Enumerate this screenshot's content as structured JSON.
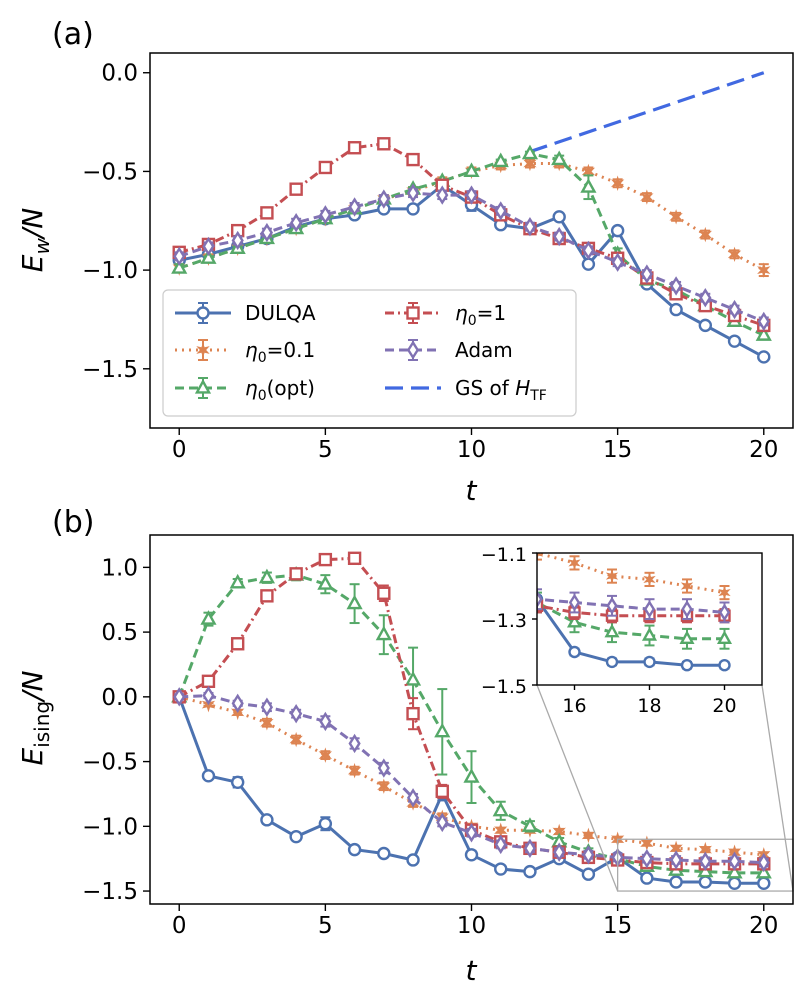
{
  "colors": {
    "DULQA": "#4c72b0",
    "eta01": "#dd8452",
    "etaopt": "#55a868",
    "eta1": "#c44e52",
    "Adam": "#8172b3",
    "GS": "#4169e1"
  },
  "legend_entries": [
    "DULQA",
    "η0=0.1",
    "η0(opt)",
    "η0=1",
    "Adam",
    "GS of HTF"
  ],
  "chart_data": [
    {
      "panel": "(a)",
      "type": "line",
      "xlabel": "t",
      "ylabel": "Ew/N",
      "xlim": [
        -1,
        21
      ],
      "ylim": [
        -1.8,
        0.1
      ],
      "xticks": [
        "0",
        "5",
        "10",
        "15",
        "20"
      ],
      "yticks": [
        "0.0",
        "−0.5",
        "−1.0",
        "−1.5"
      ],
      "legend_position": "lower-left",
      "series": [
        {
          "name": "DULQA",
          "x": [
            0,
            1,
            2,
            3,
            4,
            5,
            6,
            7,
            8,
            9,
            10,
            11,
            12,
            13,
            14,
            15,
            16,
            17,
            18,
            19,
            20
          ],
          "values": [
            -0.95,
            -0.92,
            -0.88,
            -0.84,
            -0.78,
            -0.74,
            -0.72,
            -0.69,
            -0.69,
            -0.57,
            -0.67,
            -0.77,
            -0.79,
            -0.73,
            -0.97,
            -0.8,
            -1.07,
            -1.2,
            -1.28,
            -1.36,
            -1.44
          ],
          "err": [
            0.01,
            0.01,
            0.01,
            0.01,
            0.01,
            0.01,
            0.01,
            0.01,
            0.01,
            0.01,
            0.03,
            0.01,
            0.01,
            0.01,
            0.01,
            0.01,
            0.01,
            0.01,
            0.01,
            0.01,
            0.01
          ]
        },
        {
          "name": "η0=0.1",
          "x": [
            0,
            1,
            2,
            3,
            4,
            5,
            6,
            7,
            8,
            9,
            10,
            11,
            12,
            13,
            14,
            15,
            16,
            17,
            18,
            19,
            20
          ],
          "values": [
            -0.99,
            -0.94,
            -0.89,
            -0.84,
            -0.79,
            -0.74,
            -0.69,
            -0.64,
            -0.6,
            -0.55,
            -0.5,
            -0.47,
            -0.46,
            -0.46,
            -0.5,
            -0.56,
            -0.63,
            -0.73,
            -0.82,
            -0.92,
            -1.0
          ],
          "err": [
            0.02,
            0.02,
            0.02,
            0.02,
            0.02,
            0.02,
            0.02,
            0.02,
            0.02,
            0.02,
            0.02,
            0.02,
            0.02,
            0.02,
            0.02,
            0.02,
            0.02,
            0.02,
            0.02,
            0.02,
            0.03
          ]
        },
        {
          "name": "η0(opt)",
          "x": [
            0,
            1,
            2,
            3,
            4,
            5,
            6,
            7,
            8,
            9,
            10,
            11,
            12,
            13,
            14,
            15,
            16,
            17,
            18,
            19,
            20
          ],
          "values": [
            -0.99,
            -0.94,
            -0.89,
            -0.84,
            -0.79,
            -0.74,
            -0.69,
            -0.64,
            -0.59,
            -0.55,
            -0.5,
            -0.45,
            -0.41,
            -0.44,
            -0.58,
            -0.92,
            -1.05,
            -1.1,
            -1.18,
            -1.26,
            -1.33
          ],
          "err": [
            0.02,
            0.01,
            0.01,
            0.01,
            0.01,
            0.01,
            0.01,
            0.01,
            0.01,
            0.01,
            0.01,
            0.01,
            0.01,
            0.02,
            0.06,
            0.03,
            0.02,
            0.02,
            0.02,
            0.02,
            0.02
          ]
        },
        {
          "name": "η0=1",
          "x": [
            0,
            1,
            2,
            3,
            4,
            5,
            6,
            7,
            8,
            9,
            10,
            11,
            12,
            13,
            14,
            15,
            16,
            17,
            18,
            19,
            20
          ],
          "values": [
            -0.91,
            -0.87,
            -0.8,
            -0.71,
            -0.59,
            -0.48,
            -0.38,
            -0.36,
            -0.44,
            -0.57,
            -0.63,
            -0.72,
            -0.79,
            -0.84,
            -0.89,
            -0.94,
            -1.04,
            -1.12,
            -1.18,
            -1.23,
            -1.28
          ],
          "err": [
            0.01,
            0.01,
            0.01,
            0.01,
            0.01,
            0.01,
            0.01,
            0.01,
            0.01,
            0.02,
            0.01,
            0.01,
            0.01,
            0.01,
            0.01,
            0.01,
            0.01,
            0.01,
            0.01,
            0.01,
            0.01
          ]
        },
        {
          "name": "Adam",
          "x": [
            0,
            1,
            2,
            3,
            4,
            5,
            6,
            7,
            8,
            9,
            10,
            11,
            12,
            13,
            14,
            15,
            16,
            17,
            18,
            19,
            20
          ],
          "values": [
            -0.93,
            -0.88,
            -0.85,
            -0.81,
            -0.76,
            -0.72,
            -0.68,
            -0.64,
            -0.61,
            -0.62,
            -0.62,
            -0.7,
            -0.78,
            -0.83,
            -0.9,
            -0.96,
            -1.02,
            -1.08,
            -1.14,
            -1.2,
            -1.26
          ],
          "err": [
            0.02,
            0.02,
            0.02,
            0.02,
            0.02,
            0.02,
            0.02,
            0.02,
            0.02,
            0.02,
            0.02,
            0.02,
            0.02,
            0.02,
            0.02,
            0.02,
            0.02,
            0.02,
            0.02,
            0.02,
            0.02
          ]
        },
        {
          "name": "GS of HTF",
          "x": [
            12,
            20
          ],
          "values": [
            -0.4,
            0.0
          ]
        }
      ]
    },
    {
      "panel": "(b)",
      "type": "line",
      "xlabel": "t",
      "ylabel": "Eising/N",
      "xlim": [
        -1,
        21
      ],
      "ylim": [
        -1.6,
        1.25
      ],
      "xticks": [
        "0",
        "5",
        "10",
        "15",
        "20"
      ],
      "yticks": [
        "1.0",
        "0.5",
        "0.0",
        "−0.5",
        "−1.0",
        "−1.5"
      ],
      "series": [
        {
          "name": "DULQA",
          "x": [
            0,
            1,
            2,
            3,
            4,
            5,
            6,
            7,
            8,
            9,
            10,
            11,
            12,
            13,
            14,
            15,
            16,
            17,
            18,
            19,
            20
          ],
          "values": [
            0.0,
            -0.61,
            -0.66,
            -0.95,
            -1.08,
            -0.98,
            -1.18,
            -1.21,
            -1.26,
            -0.75,
            -1.22,
            -1.33,
            -1.35,
            -1.25,
            -1.37,
            -1.24,
            -1.4,
            -1.43,
            -1.43,
            -1.44,
            -1.44
          ],
          "err": [
            0.01,
            0.02,
            0.04,
            0.03,
            0.01,
            0.05,
            0.01,
            0.01,
            0.01,
            0.05,
            0.03,
            0.01,
            0.01,
            0.01,
            0.01,
            0.01,
            0.01,
            0.01,
            0.01,
            0.01,
            0.01
          ]
        },
        {
          "name": "η0=0.1",
          "x": [
            0,
            1,
            2,
            3,
            4,
            5,
            6,
            7,
            8,
            9,
            10,
            11,
            12,
            13,
            14,
            15,
            16,
            17,
            18,
            19,
            20
          ],
          "values": [
            0.0,
            -0.06,
            -0.12,
            -0.2,
            -0.33,
            -0.45,
            -0.57,
            -0.69,
            -0.82,
            -0.93,
            -1.0,
            -1.03,
            -1.03,
            -1.04,
            -1.07,
            -1.1,
            -1.13,
            -1.17,
            -1.18,
            -1.2,
            -1.22
          ],
          "err": [
            0.01,
            0.01,
            0.02,
            0.03,
            0.03,
            0.03,
            0.03,
            0.03,
            0.03,
            0.03,
            0.02,
            0.02,
            0.02,
            0.02,
            0.02,
            0.02,
            0.02,
            0.02,
            0.02,
            0.02,
            0.02
          ]
        },
        {
          "name": "η0(opt)",
          "x": [
            0,
            1,
            2,
            3,
            4,
            5,
            6,
            7,
            8,
            9,
            10,
            11,
            12,
            13,
            14,
            15,
            16,
            17,
            18,
            19,
            20
          ],
          "values": [
            0.0,
            0.6,
            0.88,
            0.92,
            0.94,
            0.87,
            0.72,
            0.48,
            0.13,
            -0.27,
            -0.62,
            -0.88,
            -1.0,
            -1.12,
            -1.2,
            -1.25,
            -1.31,
            -1.34,
            -1.35,
            -1.36,
            -1.36
          ],
          "err": [
            0.02,
            0.05,
            0.03,
            0.04,
            0.04,
            0.07,
            0.15,
            0.15,
            0.25,
            0.33,
            0.2,
            0.07,
            0.04,
            0.03,
            0.03,
            0.03,
            0.03,
            0.03,
            0.03,
            0.03,
            0.03
          ]
        },
        {
          "name": "η0=1",
          "x": [
            0,
            1,
            2,
            3,
            4,
            5,
            6,
            7,
            8,
            9,
            10,
            11,
            12,
            13,
            14,
            15,
            16,
            17,
            18,
            19,
            20
          ],
          "values": [
            0.0,
            0.12,
            0.41,
            0.78,
            0.95,
            1.06,
            1.07,
            0.8,
            -0.13,
            -0.73,
            -1.03,
            -1.12,
            -1.17,
            -1.2,
            -1.24,
            -1.26,
            -1.28,
            -1.29,
            -1.29,
            -1.29,
            -1.29
          ],
          "err": [
            0.01,
            0.02,
            0.03,
            0.03,
            0.03,
            0.03,
            0.03,
            0.06,
            0.12,
            0.05,
            0.03,
            0.02,
            0.02,
            0.02,
            0.02,
            0.02,
            0.02,
            0.02,
            0.02,
            0.02,
            0.02
          ]
        },
        {
          "name": "Adam",
          "x": [
            0,
            1,
            2,
            3,
            4,
            5,
            6,
            7,
            8,
            9,
            10,
            11,
            12,
            13,
            14,
            15,
            16,
            17,
            18,
            19,
            20
          ],
          "values": [
            0.0,
            0.01,
            -0.05,
            -0.08,
            -0.13,
            -0.19,
            -0.36,
            -0.55,
            -0.78,
            -0.97,
            -1.05,
            -1.14,
            -1.17,
            -1.2,
            -1.22,
            -1.24,
            -1.25,
            -1.26,
            -1.27,
            -1.27,
            -1.28
          ],
          "err": [
            0.02,
            0.02,
            0.02,
            0.03,
            0.03,
            0.04,
            0.04,
            0.04,
            0.03,
            0.03,
            0.03,
            0.03,
            0.03,
            0.03,
            0.03,
            0.03,
            0.03,
            0.03,
            0.03,
            0.03,
            0.03
          ]
        }
      ],
      "inset": {
        "xlim": [
          15,
          21
        ],
        "ylim": [
          -1.5,
          -1.1
        ],
        "xticks": [
          "16",
          "18",
          "20"
        ],
        "yticks": [
          "−1.1",
          "−1.3",
          "−1.5"
        ]
      }
    }
  ]
}
